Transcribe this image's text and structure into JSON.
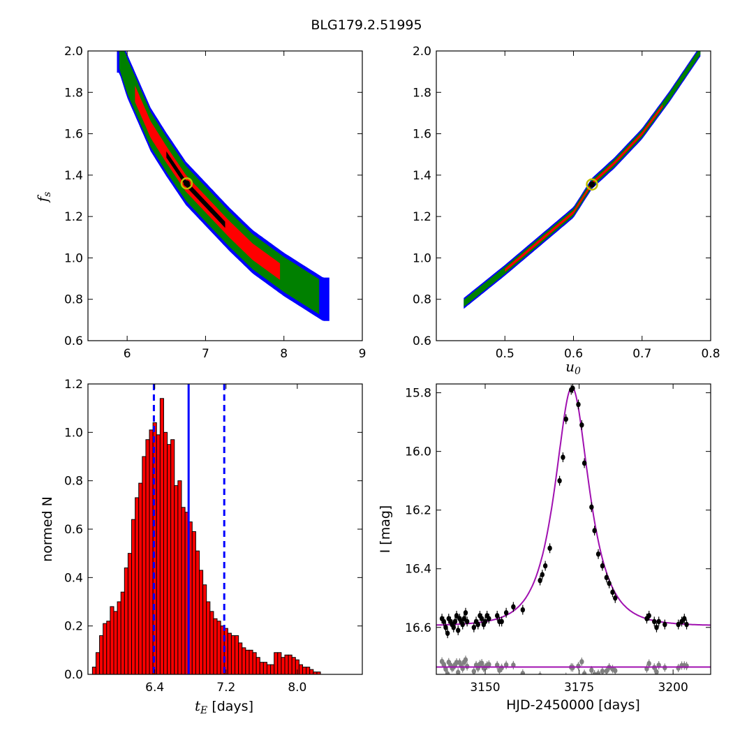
{
  "title": "BLG179.2.51995",
  "colors": {
    "band_3sigma": "#0000ff",
    "band_2sigma": "#008000",
    "band_1sigma": "#ff0000",
    "best_region": "#000000",
    "best_marker_ring": "#bfbf00",
    "hist_bar": "#ff0000",
    "hist_lines": "#0000ff",
    "model_curve": "#a010b0",
    "residuals": "#808080"
  },
  "chart_data": [
    {
      "id": "fs_vs_tE",
      "type": "heatmap",
      "xlabel": "",
      "ylabel": "f_s",
      "xlim": [
        5.5,
        9.0
      ],
      "ylim": [
        0.6,
        2.0
      ],
      "xticks": [
        "6",
        "7",
        "8",
        "9"
      ],
      "yticks": [
        "0.6",
        "0.8",
        "1.0",
        "1.2",
        "1.4",
        "1.6",
        "1.8",
        "2.0"
      ],
      "ridge": [
        [
          5.9,
          2.0
        ],
        [
          6.0,
          1.88
        ],
        [
          6.15,
          1.75
        ],
        [
          6.3,
          1.62
        ],
        [
          6.5,
          1.5
        ],
        [
          6.75,
          1.36
        ],
        [
          7.0,
          1.26
        ],
        [
          7.3,
          1.14
        ],
        [
          7.6,
          1.03
        ],
        [
          8.0,
          0.92
        ],
        [
          8.5,
          0.8
        ]
      ],
      "half_widths": {
        "band_3sigma": 0.105,
        "band_2sigma": 0.085,
        "band_1sigma": 0.04,
        "best_region": 0.015
      },
      "best_region_x": [
        6.5,
        7.25
      ],
      "best_fit": {
        "x": 6.76,
        "y": 1.36
      }
    },
    {
      "id": "fs_vs_u0",
      "type": "heatmap",
      "xlabel": "u_0",
      "ylabel": "",
      "xlim": [
        0.4,
        0.8
      ],
      "ylim": [
        0.6,
        2.0
      ],
      "xticks": [
        "0.5",
        "0.6",
        "0.7",
        "0.8"
      ],
      "yticks": [
        "0.6",
        "0.8",
        "1.0",
        "1.2",
        "1.4",
        "1.6",
        "1.8",
        "2.0"
      ],
      "ridge": [
        [
          0.44,
          0.78
        ],
        [
          0.5,
          0.94
        ],
        [
          0.55,
          1.08
        ],
        [
          0.6,
          1.22
        ],
        [
          0.627,
          1.36
        ],
        [
          0.66,
          1.46
        ],
        [
          0.7,
          1.6
        ],
        [
          0.74,
          1.78
        ],
        [
          0.785,
          2.0
        ]
      ],
      "half_widths": {
        "band_3sigma": 0.009,
        "band_2sigma": 0.006,
        "band_1sigma": 0.0025
      },
      "best_fit": {
        "x": 0.627,
        "y": 1.355
      }
    },
    {
      "id": "tE_histogram",
      "type": "bar",
      "xlabel": "t_E",
      "xlabel_unit": " [days]",
      "ylabel": "normed N",
      "xlim": [
        5.65,
        8.73
      ],
      "ylim": [
        0.0,
        1.2
      ],
      "xticks": [
        "6.4",
        "7.2",
        "8.0"
      ],
      "yticks": [
        "0.0",
        "0.2",
        "0.4",
        "0.6",
        "0.8",
        "1.0",
        "1.2"
      ],
      "bin_start": 5.7,
      "bin_width": 0.04,
      "values": [
        0.03,
        0.09,
        0.16,
        0.21,
        0.22,
        0.28,
        0.26,
        0.3,
        0.34,
        0.44,
        0.5,
        0.64,
        0.73,
        0.79,
        0.9,
        0.97,
        1.01,
        1.04,
        0.99,
        1.14,
        1.0,
        0.95,
        0.97,
        0.78,
        0.8,
        0.69,
        0.67,
        0.63,
        0.59,
        0.51,
        0.43,
        0.37,
        0.3,
        0.26,
        0.23,
        0.22,
        0.2,
        0.19,
        0.17,
        0.16,
        0.16,
        0.13,
        0.11,
        0.1,
        0.1,
        0.09,
        0.07,
        0.05,
        0.05,
        0.04,
        0.04,
        0.09,
        0.09,
        0.07,
        0.08,
        0.08,
        0.07,
        0.06,
        0.04,
        0.03,
        0.03,
        0.02,
        0.01,
        0.01
      ],
      "median": 6.78,
      "interval": [
        6.39,
        7.18
      ]
    },
    {
      "id": "light_curve",
      "type": "scatter",
      "xlabel": "HJD-2450000 [days]",
      "ylabel": "I [mag]",
      "xlim": [
        3137,
        3210
      ],
      "ylim": [
        16.76,
        15.77
      ],
      "xticks": [
        "3150",
        "3175",
        "3200"
      ],
      "yticks": [
        "15.8",
        "16.0",
        "16.2",
        "16.4",
        "16.6"
      ],
      "model": {
        "t0": 3173.1,
        "tE": 6.76,
        "u0": 0.627,
        "baseline": 16.595,
        "fs": 1.36
      },
      "residual_baseline": 16.735,
      "points": [
        [
          3138.5,
          16.57
        ],
        [
          3139.0,
          16.58
        ],
        [
          3139.5,
          16.6
        ],
        [
          3140.0,
          16.62
        ],
        [
          3140.3,
          16.57
        ],
        [
          3140.8,
          16.58
        ],
        [
          3141.2,
          16.59
        ],
        [
          3141.6,
          16.6
        ],
        [
          3142.0,
          16.58
        ],
        [
          3142.4,
          16.56
        ],
        [
          3142.8,
          16.61
        ],
        [
          3143.2,
          16.57
        ],
        [
          3143.6,
          16.58
        ],
        [
          3144.0,
          16.59
        ],
        [
          3144.4,
          16.57
        ],
        [
          3144.8,
          16.55
        ],
        [
          3145.2,
          16.58
        ],
        [
          3147.0,
          16.6
        ],
        [
          3147.6,
          16.58
        ],
        [
          3148.1,
          16.59
        ],
        [
          3148.6,
          16.56
        ],
        [
          3149.1,
          16.57
        ],
        [
          3149.6,
          16.59
        ],
        [
          3150.0,
          16.58
        ],
        [
          3150.5,
          16.56
        ],
        [
          3151.0,
          16.57
        ],
        [
          3153.2,
          16.56
        ],
        [
          3153.8,
          16.58
        ],
        [
          3154.4,
          16.58
        ],
        [
          3155.6,
          16.55
        ],
        [
          3157.5,
          16.53
        ],
        [
          3160.0,
          16.54
        ],
        [
          3164.6,
          16.44
        ],
        [
          3165.2,
          16.42
        ],
        [
          3166.0,
          16.39
        ],
        [
          3167.2,
          16.33
        ],
        [
          3169.8,
          16.1
        ],
        [
          3170.7,
          16.02
        ],
        [
          3171.5,
          15.89
        ],
        [
          3172.9,
          15.79
        ],
        [
          3173.3,
          15.785
        ],
        [
          3174.8,
          15.84
        ],
        [
          3175.7,
          15.91
        ],
        [
          3176.4,
          16.04
        ],
        [
          3178.3,
          16.19
        ],
        [
          3179.1,
          16.27
        ],
        [
          3180.1,
          16.35
        ],
        [
          3181.2,
          16.39
        ],
        [
          3182.3,
          16.43
        ],
        [
          3183.0,
          16.45
        ],
        [
          3183.9,
          16.48
        ],
        [
          3184.6,
          16.5
        ],
        [
          3193.0,
          16.57
        ],
        [
          3193.6,
          16.56
        ],
        [
          3195.0,
          16.58
        ],
        [
          3195.6,
          16.6
        ],
        [
          3196.2,
          16.58
        ],
        [
          3197.8,
          16.59
        ],
        [
          3201.4,
          16.59
        ],
        [
          3203.0,
          16.57
        ],
        [
          3203.6,
          16.59
        ],
        [
          3202.3,
          16.58
        ]
      ]
    }
  ]
}
